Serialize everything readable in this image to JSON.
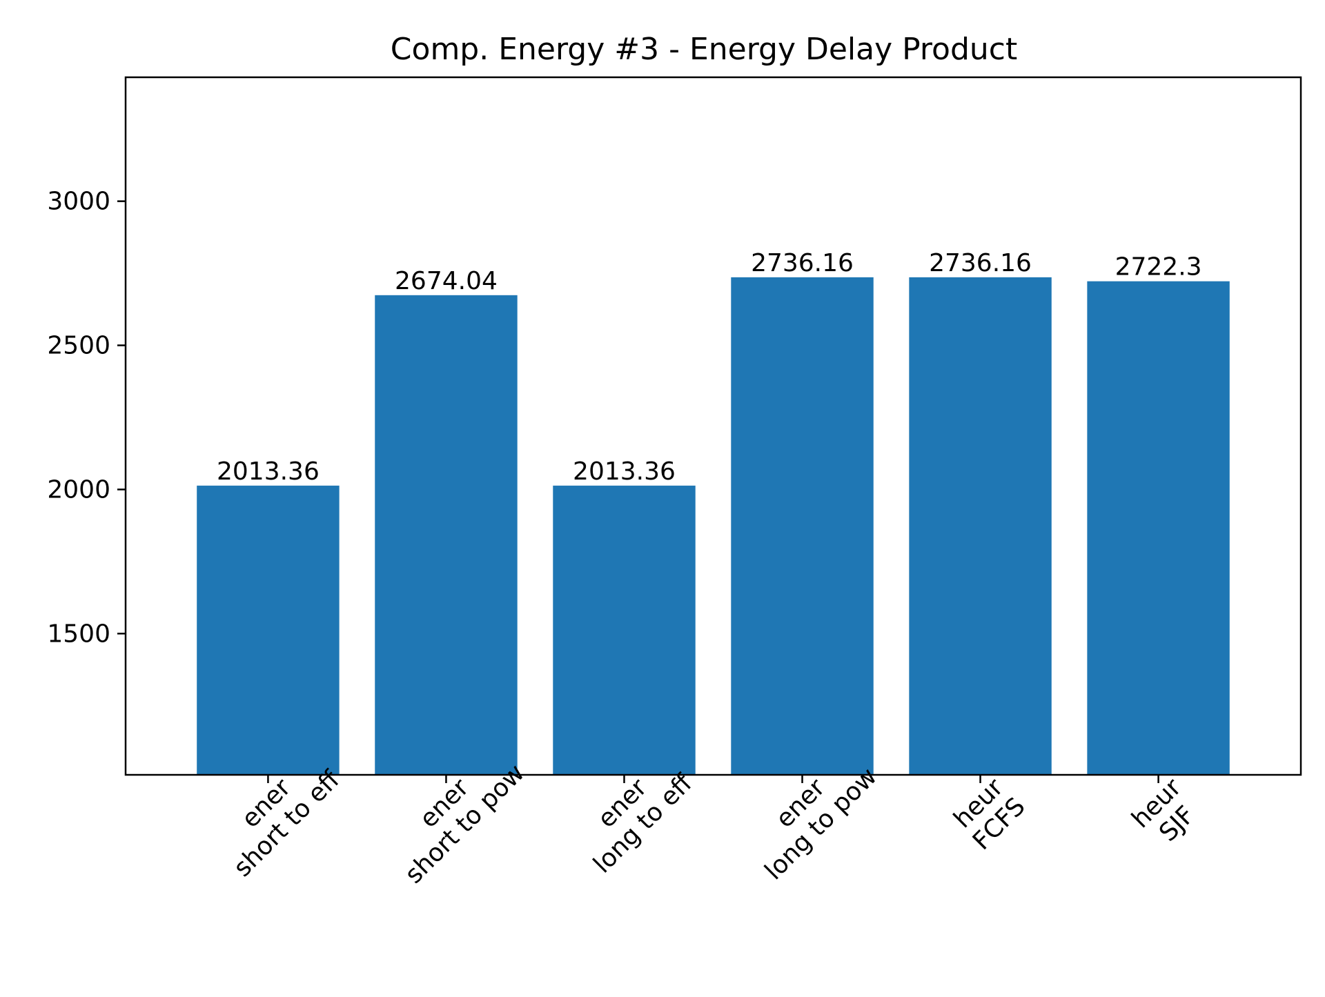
{
  "chart_data": {
    "type": "bar",
    "title": "Comp. Energy #3 - Energy Delay Product",
    "xlabel": "",
    "ylabel": "",
    "categories": [
      [
        "ener",
        "short to eff"
      ],
      [
        "ener",
        "short to pow"
      ],
      [
        "ener",
        "long to eff"
      ],
      [
        "ener",
        "long to pow"
      ],
      [
        "heur",
        "FCFS"
      ],
      [
        "heur",
        "SJF"
      ]
    ],
    "values": [
      2013.36,
      2674.04,
      2013.36,
      2736.16,
      2736.16,
      2722.3
    ],
    "value_labels": [
      "2013.36",
      "2674.04",
      "2013.36",
      "2736.16",
      "2736.16",
      "2722.3"
    ],
    "ylim": [
      1010,
      3430
    ],
    "yticks": [
      1500,
      2000,
      2500,
      3000
    ],
    "ytick_labels": [
      "1500",
      "2000",
      "2500",
      "3000"
    ],
    "grid": false,
    "legend": "none",
    "bar_color": "#1f77b4"
  }
}
